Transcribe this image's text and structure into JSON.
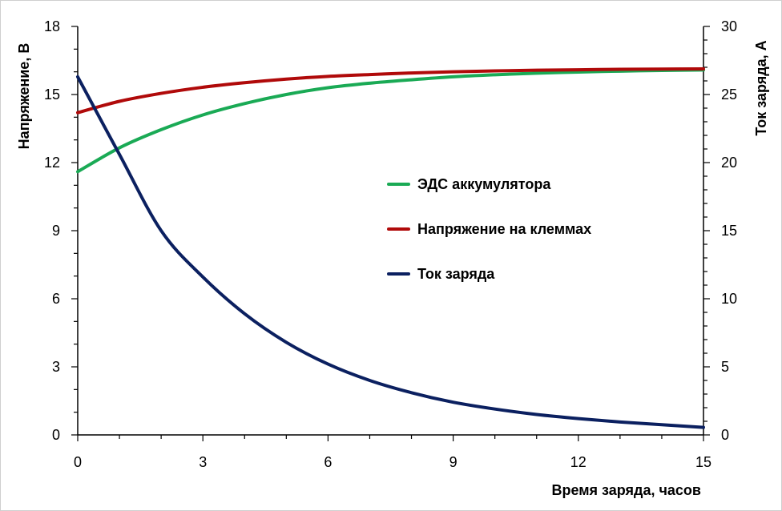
{
  "chart_data": {
    "type": "line",
    "title": "",
    "xlabel": "Время заряда, часов",
    "ylabel_left": "Напряжение, В",
    "ylabel_right": "Ток заряда, А",
    "xlim": [
      0,
      15
    ],
    "ylim_left": [
      0,
      18
    ],
    "ylim_right": [
      0,
      30
    ],
    "x_ticks": [
      "0",
      "3",
      "6",
      "9",
      "12",
      "15"
    ],
    "y_left_ticks": [
      "0",
      "3",
      "6",
      "9",
      "12",
      "15",
      "18"
    ],
    "y_right_ticks": [
      "0",
      "5",
      "10",
      "15",
      "20",
      "25",
      "30"
    ],
    "grid": false,
    "legend_position": "center-right",
    "series": [
      {
        "name": "ЭДС аккумулятора",
        "axis": "left",
        "color": "#1aaa55",
        "x": [
          0,
          1,
          2,
          3,
          4,
          5,
          6,
          7,
          8,
          9,
          10,
          11,
          12,
          13,
          14,
          15
        ],
        "values": [
          11.6,
          12.65,
          13.45,
          14.1,
          14.6,
          15.0,
          15.3,
          15.5,
          15.65,
          15.78,
          15.87,
          15.94,
          15.99,
          16.03,
          16.06,
          16.08
        ]
      },
      {
        "name": "Напряжение на клеммах",
        "axis": "left",
        "color": "#b00a0a",
        "x": [
          0,
          1,
          2,
          3,
          4,
          5,
          6,
          7,
          8,
          9,
          10,
          11,
          12,
          13,
          14,
          15
        ],
        "values": [
          14.2,
          14.7,
          15.05,
          15.32,
          15.52,
          15.68,
          15.8,
          15.88,
          15.95,
          16.0,
          16.04,
          16.07,
          16.09,
          16.11,
          16.12,
          16.13
        ]
      },
      {
        "name": "Ток заряда",
        "axis": "right",
        "color": "#0b2060",
        "x": [
          0,
          1,
          2,
          3,
          4,
          5,
          6,
          7,
          8,
          9,
          10,
          11,
          12,
          13,
          14,
          15
        ],
        "values": [
          26.3,
          20.6,
          15.0,
          11.6,
          8.9,
          6.8,
          5.2,
          4.0,
          3.1,
          2.4,
          1.9,
          1.5,
          1.2,
          0.95,
          0.75,
          0.55
        ]
      }
    ]
  }
}
